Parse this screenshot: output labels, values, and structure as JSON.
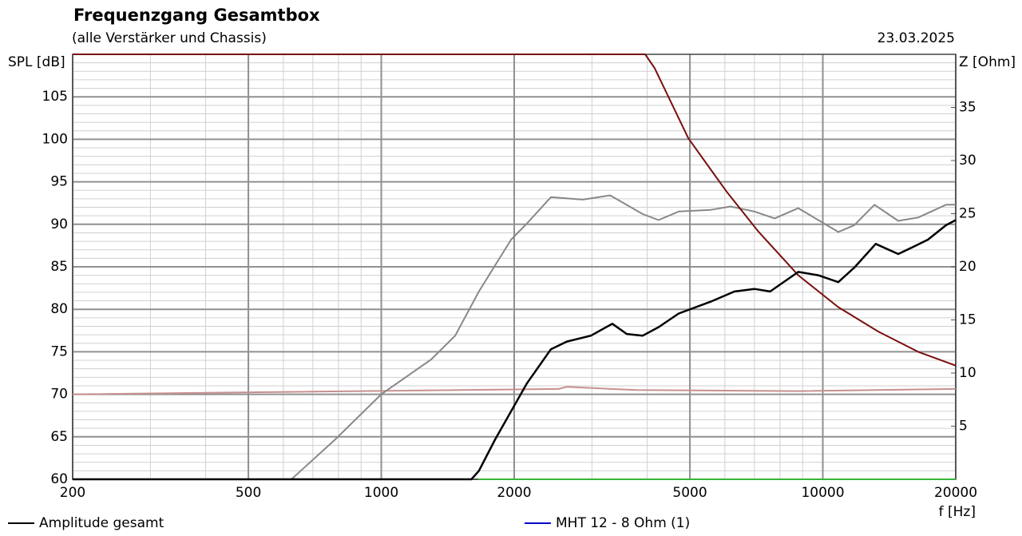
{
  "chart_data": {
    "type": "line",
    "title": "Frequenzgang Gesamtbox",
    "subtitle": "(alle Verstärker und Chassis)",
    "date": "23.03.2025",
    "y_label": "SPL [dB]",
    "y2_label": "Z [Ohm]",
    "x_label": "f [Hz]",
    "log_x": true,
    "grid": true,
    "xlim": [
      200,
      20000
    ],
    "xticks": [
      200,
      500,
      1000,
      2000,
      5000,
      10000,
      20000
    ],
    "xminorticks": [
      300,
      400,
      600,
      700,
      800,
      900,
      3000,
      4000,
      6000,
      7000,
      8000,
      9000
    ],
    "ylim": [
      60,
      110
    ],
    "yticks": [
      60,
      65,
      70,
      75,
      80,
      85,
      90,
      95,
      100,
      105
    ],
    "yminorticks": [
      61,
      62,
      63,
      64,
      66,
      67,
      68,
      69,
      71,
      72,
      73,
      74,
      76,
      77,
      78,
      79,
      81,
      82,
      83,
      84,
      86,
      87,
      88,
      89,
      91,
      92,
      93,
      94,
      96,
      97,
      98,
      99,
      101,
      102,
      103,
      104,
      106,
      107,
      108,
      109
    ],
    "y2lim": [
      0,
      40
    ],
    "y2ticks": [
      5,
      10,
      15,
      20,
      25,
      30,
      35
    ],
    "legend": [
      {
        "name": "Amplitude gesamt",
        "color": "#000000"
      },
      {
        "name": "MHT 12 - 8 Ohm (1)",
        "color": "#0000cc"
      }
    ],
    "series": [
      {
        "color": "#39b539",
        "x": [
          1660,
          20000
        ],
        "values": [
          60,
          60
        ]
      },
      {
        "color": "#c89090",
        "axis": "y2",
        "x": [
          200,
          2520,
          2632,
          3780,
          8800,
          20000
        ],
        "values": [
          8.0,
          8.5,
          8.7,
          8.4,
          8.3,
          8.5
        ]
      },
      {
        "color": "#888888",
        "x": [
          626,
          787,
          1000,
          1297,
          1470,
          1664,
          1968,
          2138,
          2422,
          2860,
          3300,
          3910,
          4248,
          4716,
          5576,
          6180,
          7000,
          7780,
          8800,
          10840,
          11780,
          13090,
          14820,
          16440,
          19020,
          20000
        ],
        "values": [
          60,
          64.7,
          70,
          74.1,
          76.9,
          82.1,
          88.2,
          90.1,
          93.2,
          92.9,
          93.4,
          91.2,
          90.5,
          91.5,
          91.7,
          92.1,
          91.5,
          90.7,
          91.9,
          89.1,
          89.9,
          92.3,
          90.4,
          90.8,
          92.3,
          92.3
        ]
      },
      {
        "color": "#7a0f0f",
        "axis": "y2",
        "x": [
          200,
          3960,
          4160,
          4960,
          6050,
          7150,
          8800,
          10840,
          13360,
          16440,
          20000
        ],
        "values": [
          40,
          40,
          38.7,
          32.1,
          27.1,
          23.3,
          19.2,
          16.2,
          13.9,
          12.0,
          10.7
        ]
      },
      {
        "name": "Amplitude gesamt",
        "color": "#000000",
        "x": [
          200,
          1600,
          1664,
          1811,
          1968,
          2138,
          2422,
          2632,
          2984,
          3336,
          3598,
          3910,
          4248,
          4716,
          5576,
          6310,
          7000,
          7600,
          8800,
          9770,
          10840,
          11780,
          13180,
          14820,
          16100,
          17300,
          19020,
          20000
        ],
        "values": [
          60,
          60,
          61,
          64.7,
          68,
          71.3,
          75.3,
          76.2,
          76.9,
          78.3,
          77.1,
          76.9,
          77.9,
          79.5,
          80.9,
          82.1,
          82.4,
          82.1,
          84.4,
          84.0,
          83.2,
          84.9,
          87.7,
          86.5,
          87.4,
          88.2,
          89.9,
          90.5
        ]
      }
    ]
  }
}
